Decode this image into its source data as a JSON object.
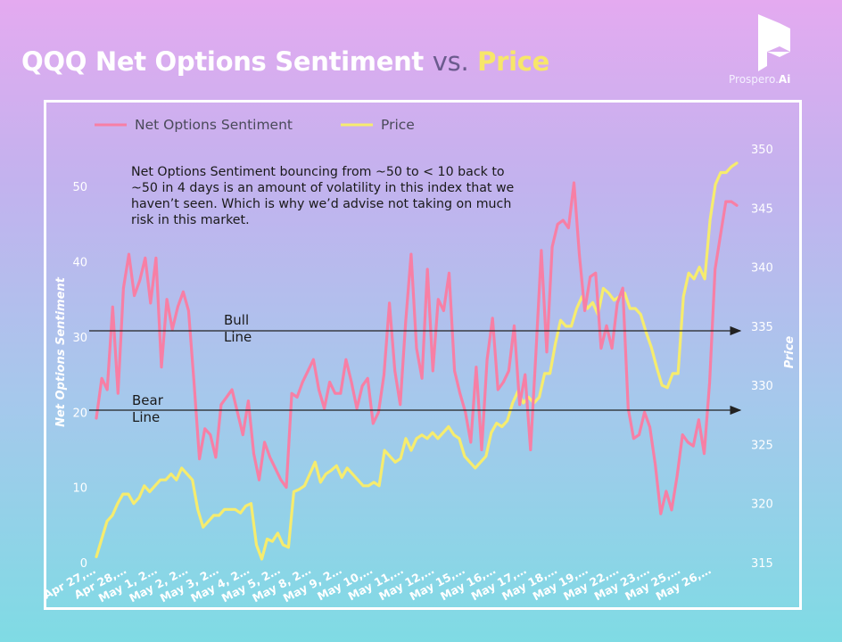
{
  "header": {
    "title_part1": "QQQ Net Options Sentiment ",
    "title_vs": "vs.",
    "title_part2": " Price"
  },
  "logo": {
    "icon": "prospero-logo-icon",
    "text_main": "Prospero.",
    "text_accent": "Ai"
  },
  "colors": {
    "sentiment": "#f77fa5",
    "price": "#f6ec6e",
    "axis_text": "#ffffff",
    "arrow": "#222222"
  },
  "annotation": "Net Options Sentiment bouncing from ~50 to < 10 back to ~50 in 4 days is an amount of volatility in this index that we haven’t seen. Which is why we’d advise not taking on much risk in this market.",
  "bull_label": [
    "Bull",
    "Line"
  ],
  "bear_label": [
    "Bear",
    "Line"
  ],
  "chart_data": {
    "type": "line",
    "ylabel": "Net Options Sentiment",
    "y2label": "Price",
    "ylim": [
      0,
      55
    ],
    "y2lim": [
      315,
      350
    ],
    "yticks": [
      0,
      10,
      20,
      30,
      40,
      50
    ],
    "y2ticks": [
      315,
      320,
      325,
      330,
      335,
      340,
      345,
      350
    ],
    "x_tick_labels": [
      "Apr 27,…",
      "Apr 28,…",
      "May 1, 2…",
      "May 2, 2…",
      "May 3, 2…",
      "May 4, 2…",
      "May 5, 2…",
      "May 8, 2…",
      "May 9, 2…",
      "May 10,…",
      "May 11,…",
      "May 12,…",
      "May 15,…",
      "May 16,…",
      "May 17,…",
      "May 18,…",
      "May 19,…",
      "May 22,…",
      "May 23,…",
      "May 25,…",
      "May 26,…"
    ],
    "legend": {
      "placement": "top-left"
    },
    "bull_line_value": 30,
    "bear_line_value": 20,
    "series": [
      {
        "name": "Net Options Sentiment",
        "axis": "left",
        "values": [
          19.2,
          24.5,
          23,
          34,
          22.5,
          36.5,
          41,
          35.5,
          37.5,
          40.5,
          34.5,
          40.5,
          26,
          35,
          31,
          34,
          36,
          33.5,
          24,
          13.8,
          17.8,
          17,
          14,
          21,
          22,
          23,
          20,
          17,
          21.5,
          14.5,
          11,
          16,
          14,
          12.5,
          11,
          10,
          22.5,
          22,
          24,
          25.5,
          27,
          23,
          20.5,
          24,
          22.5,
          22.5,
          27,
          24,
          20.5,
          23.5,
          24.5,
          18.5,
          20,
          25,
          34.5,
          25.5,
          21,
          32,
          41,
          28.5,
          24.5,
          39,
          25.5,
          35,
          33.5,
          38.5,
          25.5,
          22.5,
          20,
          16,
          26,
          15,
          27,
          32.5,
          23,
          24,
          25.5,
          31.5,
          21,
          25,
          15,
          28,
          41.5,
          28,
          42,
          45,
          45.5,
          44.5,
          50.5,
          41,
          33.5,
          38,
          38.5,
          28.5,
          31.5,
          28.5,
          34.5,
          36.5,
          20.5,
          16.5,
          17,
          20,
          18,
          13,
          6.5,
          9.5,
          7,
          11.5,
          17,
          16,
          15.5,
          19,
          14.5,
          24,
          39,
          43.5,
          48,
          48,
          47.5
        ]
      },
      {
        "name": "Price",
        "axis": "right",
        "values": [
          315.5,
          317,
          318.5,
          319,
          320,
          320.8,
          320.8,
          320,
          320.5,
          321.5,
          321,
          321.5,
          322,
          322,
          322.5,
          322,
          323,
          322.5,
          322,
          319.5,
          318,
          318.5,
          319,
          319,
          319.5,
          319.5,
          319.5,
          319.2,
          319.8,
          320,
          316.5,
          315.3,
          317,
          316.8,
          317.5,
          316.5,
          316.3,
          321,
          321.2,
          321.5,
          322.5,
          323.5,
          321.8,
          322.5,
          322.8,
          323.2,
          322.2,
          323,
          322.5,
          322,
          321.5,
          321.5,
          321.8,
          321.5,
          324.5,
          324,
          323.5,
          323.8,
          325.5,
          324.5,
          325.5,
          325.8,
          325.5,
          326,
          325.5,
          326,
          326.5,
          325.8,
          325.5,
          324,
          323.5,
          323,
          323.5,
          324,
          326,
          326.8,
          326.5,
          327,
          328.5,
          329.5,
          328.5,
          329,
          328.5,
          329,
          331,
          331,
          333.5,
          335.5,
          335,
          335,
          336.5,
          337.5,
          336.5,
          337,
          336,
          338.2,
          337.8,
          337.2,
          337.5,
          337.8,
          336.5,
          336.5,
          336,
          334.5,
          333.2,
          331.5,
          330,
          329.8,
          331,
          331,
          337.5,
          339.5,
          339,
          340,
          339,
          344,
          347,
          348,
          348,
          348.5,
          348.8
        ]
      }
    ]
  }
}
